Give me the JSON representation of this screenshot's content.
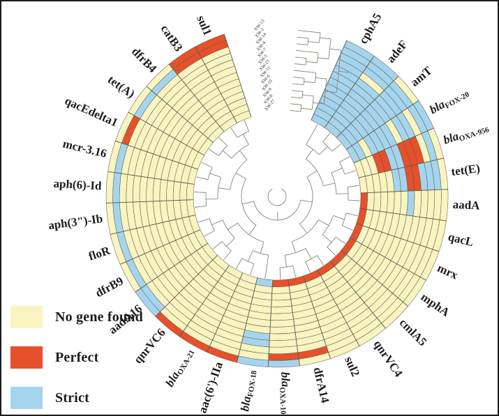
{
  "chart_data": {
    "type": "heatmap",
    "layout": "circular",
    "title": "",
    "description": "Circular antimicrobial resistance gene presence heatmap with central gene dendrogram and outer sample dendrogram",
    "legend_position": "bottom-left",
    "value_key": {
      "0": "No gene found",
      "1": "Perfect",
      "2": "Strict"
    },
    "colors": {
      "no_gene_found": "#f9f4c0",
      "perfect": "#e6502a",
      "strict": "#a5d5ee",
      "cell_stroke": "#5f5f52",
      "dendrogram": "#85857a",
      "label": "#1c1c1c"
    },
    "legend": [
      {
        "label": "No gene found",
        "color": "#f9f4c0",
        "code": 0
      },
      {
        "label": "Perfect",
        "color": "#e6502a",
        "code": 1
      },
      {
        "label": "Strict",
        "color": "#a5d5ee",
        "code": 2
      }
    ],
    "rings_note": "13 concentric rings (outermost first); tiny diagonal sample labels at top gap",
    "rings": [
      "XW-13",
      "XW-2",
      "XW-14",
      "XW-4",
      "XW-7",
      "XW-5",
      "XW-21",
      "XW-11",
      "XW-6",
      "XW-10",
      "XW-9",
      "XW-8",
      "XW-27"
    ],
    "genes_note": "30 gene sectors clockwise from top gap; values outer ring to inner ring; 0=no gene found,1=perfect,2=strict",
    "genes": [
      {
        "name": "cphA5",
        "label": "cphA5",
        "values": [
          2,
          2,
          2,
          2,
          2,
          2,
          2,
          2,
          2,
          2,
          2,
          2,
          2
        ]
      },
      {
        "name": "adeF",
        "label": "adeF",
        "values": [
          2,
          2,
          2,
          0,
          2,
          2,
          2,
          2,
          2,
          2,
          2,
          2,
          2
        ]
      },
      {
        "name": "amT",
        "label": "amT",
        "values": [
          0,
          2,
          2,
          2,
          2,
          2,
          2,
          2,
          2,
          2,
          2,
          2,
          2
        ]
      },
      {
        "name": "blaFOX-20",
        "label": "bla",
        "italic": true,
        "sub": "FOX-20",
        "values": [
          2,
          2,
          0,
          2,
          2,
          0,
          2,
          2,
          2,
          2,
          0,
          2,
          2
        ]
      },
      {
        "name": "blaOXA-956",
        "label": "bla",
        "italic": true,
        "sub": "OXA-956",
        "values": [
          0,
          2,
          0,
          1,
          1,
          1,
          2,
          2,
          1,
          1,
          0,
          0,
          0
        ]
      },
      {
        "name": "tet(E)",
        "label": "tet(E)",
        "values": [
          0,
          2,
          2,
          2,
          1,
          1,
          2,
          2,
          0,
          0,
          0,
          0,
          0
        ]
      },
      {
        "name": "aadA",
        "label": "aadA",
        "values": [
          0,
          0,
          0,
          0,
          0,
          2,
          0,
          0,
          0,
          0,
          0,
          0,
          1
        ]
      },
      {
        "name": "qacL",
        "label": "qacL",
        "values": [
          0,
          0,
          0,
          0,
          0,
          0,
          0,
          0,
          0,
          0,
          0,
          0,
          1
        ]
      },
      {
        "name": "mrx",
        "label": "mrx",
        "values": [
          0,
          0,
          0,
          0,
          0,
          0,
          0,
          0,
          0,
          0,
          0,
          0,
          1
        ]
      },
      {
        "name": "mphA",
        "label": "mphA",
        "values": [
          0,
          0,
          0,
          0,
          0,
          0,
          0,
          0,
          0,
          0,
          0,
          0,
          1
        ]
      },
      {
        "name": "cmlA5",
        "label": "cmlA5",
        "values": [
          0,
          0,
          0,
          0,
          0,
          0,
          0,
          0,
          0,
          0,
          0,
          0,
          1
        ]
      },
      {
        "name": "qnrVC4",
        "label": "qnrVC4",
        "values": [
          0,
          0,
          0,
          0,
          0,
          0,
          0,
          0,
          0,
          0,
          0,
          0,
          1
        ]
      },
      {
        "name": "sul2",
        "label": "sul2",
        "values": [
          0,
          0,
          0,
          0,
          0,
          0,
          0,
          0,
          0,
          0,
          0,
          0,
          1
        ]
      },
      {
        "name": "dfrA14",
        "label": "dfrA14",
        "values": [
          0,
          1,
          0,
          0,
          0,
          0,
          0,
          0,
          0,
          0,
          0,
          0,
          1
        ]
      },
      {
        "name": "blaOXA-10",
        "label": "bla",
        "italic": true,
        "sub": "OXA-10",
        "values": [
          2,
          1,
          0,
          0,
          0,
          0,
          0,
          0,
          0,
          0,
          0,
          0,
          1
        ]
      },
      {
        "name": "blaFOX-18",
        "label": "bla",
        "italic": true,
        "sub": "FOX-18",
        "values": [
          2,
          0,
          0,
          2,
          2,
          0,
          0,
          0,
          0,
          0,
          0,
          0,
          2
        ]
      },
      {
        "name": "aac(6')-IIa",
        "label": "aac(6')-IIa",
        "values": [
          1,
          0,
          0,
          0,
          0,
          0,
          0,
          0,
          0,
          0,
          0,
          0,
          0
        ]
      },
      {
        "name": "blaOXA-21",
        "label": "bla",
        "italic": true,
        "sub": "OXA-21",
        "values": [
          1,
          0,
          0,
          0,
          0,
          0,
          0,
          0,
          0,
          0,
          0,
          0,
          0
        ]
      },
      {
        "name": "qnrVC6",
        "label": "qnrVC6",
        "values": [
          1,
          0,
          0,
          0,
          0,
          0,
          0,
          0,
          0,
          0,
          0,
          0,
          0
        ]
      },
      {
        "name": "aadA16",
        "label": "aadA16",
        "values": [
          2,
          2,
          0,
          0,
          0,
          0,
          0,
          0,
          0,
          0,
          0,
          0,
          0
        ]
      },
      {
        "name": "dfrB9",
        "label": "dfrB9",
        "values": [
          0,
          2,
          0,
          0,
          0,
          0,
          0,
          0,
          0,
          0,
          0,
          0,
          0
        ]
      },
      {
        "name": "floR",
        "label": "floR",
        "values": [
          0,
          2,
          0,
          0,
          0,
          0,
          0,
          0,
          0,
          0,
          0,
          0,
          0
        ]
      },
      {
        "name": "aph(3\")-Ib",
        "label": "aph(3\")-Ib",
        "values": [
          0,
          2,
          0,
          0,
          0,
          0,
          0,
          0,
          0,
          0,
          0,
          0,
          0
        ]
      },
      {
        "name": "aph(6)-Id",
        "label": "aph(6)-Id",
        "values": [
          0,
          2,
          0,
          0,
          0,
          0,
          0,
          0,
          0,
          0,
          0,
          0,
          0
        ]
      },
      {
        "name": "mcr-3.16",
        "label": "mcr-3.16",
        "values": [
          0,
          2,
          0,
          0,
          0,
          0,
          0,
          0,
          0,
          0,
          0,
          0,
          0
        ]
      },
      {
        "name": "qacEdelta1",
        "label": "qacEdelta1",
        "values": [
          0,
          1,
          0,
          0,
          0,
          0,
          0,
          0,
          0,
          0,
          0,
          0,
          0
        ]
      },
      {
        "name": "tet(A)",
        "label": "tet(A)",
        "values": [
          0,
          2,
          0,
          0,
          0,
          0,
          0,
          0,
          0,
          0,
          0,
          0,
          0
        ]
      },
      {
        "name": "dfrB4",
        "label": "dfrB4",
        "values": [
          0,
          2,
          0,
          0,
          0,
          0,
          0,
          0,
          0,
          0,
          0,
          0,
          0
        ]
      },
      {
        "name": "catB3",
        "label": "catB3",
        "values": [
          1,
          1,
          0,
          0,
          0,
          0,
          0,
          0,
          0,
          0,
          0,
          0,
          0
        ]
      },
      {
        "name": "sul1",
        "label": "sul1",
        "values": [
          1,
          1,
          0,
          0,
          0,
          0,
          0,
          0,
          0,
          0,
          0,
          0,
          0
        ]
      }
    ]
  }
}
